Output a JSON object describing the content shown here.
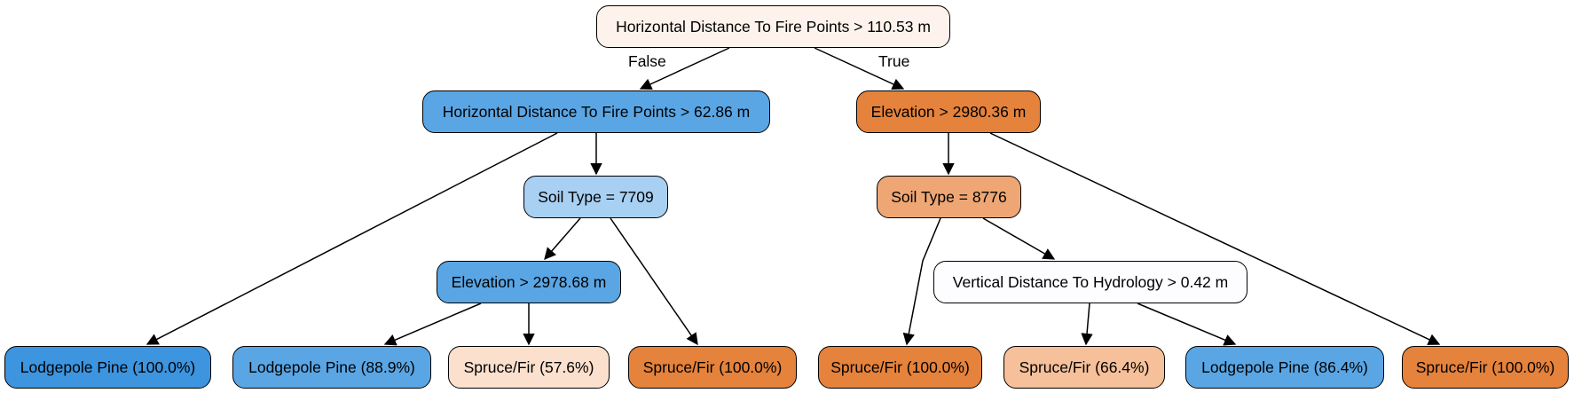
{
  "colors": {
    "blue_dark": "#3d94df",
    "blue_mid": "#5aa6e5",
    "blue_light": "#a8d0f3",
    "orange_dark": "#e5823b",
    "orange_mid": "#eea774",
    "orange_light": "#f5c09a",
    "orange_pale": "#fbe0cd",
    "root_fill": "#fdf3ec",
    "white": "#fdfdff",
    "line": "#000000"
  },
  "nodes": {
    "root": {
      "label": "Horizontal Distance To Fire Points > 110.53 m"
    },
    "hd_fire_62": {
      "label": "Horizontal Distance To Fire Points > 62.86 m"
    },
    "elev_2980": {
      "label": "Elevation > 2980.36 m"
    },
    "soil_7709": {
      "label": "Soil Type = 7709"
    },
    "soil_8776": {
      "label": "Soil Type = 8776"
    },
    "elev_2978": {
      "label": "Elevation > 2978.68 m"
    },
    "vd_hydro": {
      "label": "Vertical Distance To Hydrology > 0.42 m"
    },
    "leaf1": {
      "label": "Lodgepole Pine (100.0%)"
    },
    "leaf2": {
      "label": "Lodgepole Pine (88.9%)"
    },
    "leaf3": {
      "label": "Spruce/Fir (57.6%)"
    },
    "leaf4": {
      "label": "Spruce/Fir (100.0%)"
    },
    "leaf5": {
      "label": "Spruce/Fir (100.0%)"
    },
    "leaf6": {
      "label": "Spruce/Fir (66.4%)"
    },
    "leaf7": {
      "label": "Lodgepole Pine (86.4%)"
    },
    "leaf8": {
      "label": "Spruce/Fir (100.0%)"
    }
  },
  "edge_labels": {
    "false": "False",
    "true": "True"
  }
}
